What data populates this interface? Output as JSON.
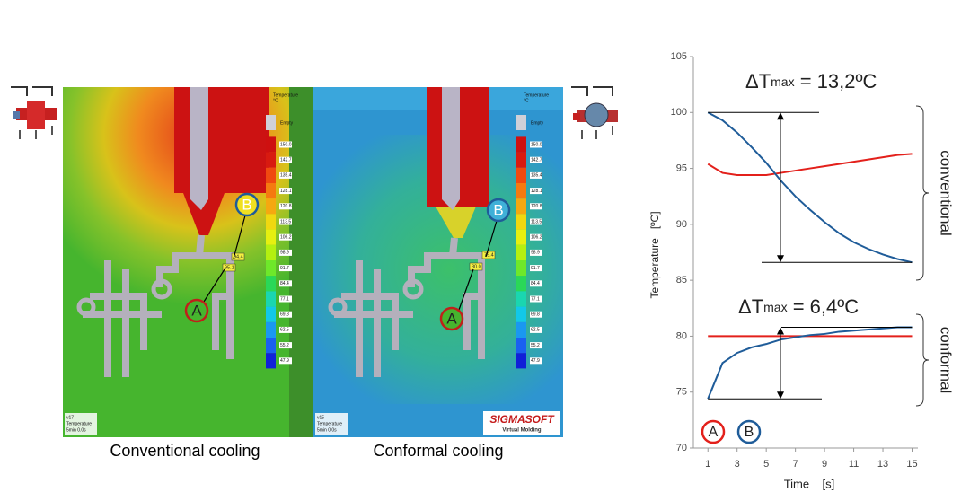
{
  "panels": [
    {
      "caption": "Conventional cooling",
      "version": "v17",
      "result": "Temperature",
      "time": "5min 0.0s",
      "probes": [
        "94.4",
        "95.1"
      ],
      "markers": [
        "A",
        "B"
      ]
    },
    {
      "caption": "Conformal cooling",
      "version": "v15",
      "result": "Temperature",
      "time": "5min 0.0s",
      "probes": [
        "79.4",
        "80.0"
      ],
      "markers": [
        "A",
        "B"
      ]
    }
  ],
  "colorbar": {
    "title": "Temperature",
    "unit": "°C",
    "empty": "Empty",
    "labels": [
      "150.0",
      "142.7",
      "135.4",
      "128.1",
      "120.8",
      "113.5",
      "106.2",
      "98.9",
      "91.7",
      "84.4",
      "77.1",
      "69.8",
      "62.5",
      "55.2",
      "47.9"
    ]
  },
  "logo": {
    "name": "SIGMASOFT",
    "tagline": "Virtual Molding"
  },
  "chart_data": {
    "type": "line",
    "x": [
      1,
      2,
      3,
      4,
      5,
      6,
      7,
      8,
      9,
      10,
      11,
      12,
      13,
      14,
      15
    ],
    "series": [
      {
        "name": "A",
        "color": "#e3201b",
        "values": [
          95.4,
          94.6,
          94.4,
          94.4,
          94.4,
          94.6,
          94.8,
          95.0,
          95.2,
          95.4,
          95.6,
          95.8,
          96.0,
          96.2,
          96.3
        ]
      },
      {
        "name": "B",
        "color": "#1f5c99",
        "values": [
          100,
          99.3,
          98.2,
          96.9,
          95.5,
          93.9,
          92.5,
          91.3,
          90.2,
          89.2,
          88.4,
          87.8,
          87.3,
          86.9,
          86.6
        ]
      },
      {
        "name": "A",
        "color": "#e3201b",
        "values": [
          80,
          80,
          80,
          80,
          80,
          80,
          80,
          80,
          80,
          80,
          80,
          80,
          80,
          80,
          80
        ]
      },
      {
        "name": "B",
        "color": "#1f5c99",
        "values": [
          74.4,
          77.6,
          78.5,
          79.0,
          79.3,
          79.7,
          79.9,
          80.1,
          80.2,
          80.4,
          80.5,
          80.6,
          80.7,
          80.8,
          80.8
        ]
      }
    ],
    "xlim": [
      0,
      15.4
    ],
    "xticks": [
      1,
      3,
      5,
      7,
      9,
      11,
      13,
      15
    ],
    "ylim": [
      70,
      105
    ],
    "yticks": [
      70,
      75,
      80,
      85,
      90,
      95,
      100,
      105
    ],
    "xlabel": "Time    [s]",
    "ylabel": "Temperature   [ºC]",
    "grid": false,
    "annotations": [
      {
        "text": "ΔT",
        "subscript": "max",
        "suffix": " = 13,2ºC"
      },
      {
        "text": "ΔT",
        "subscript": "max",
        "suffix": " = 6,4ºC"
      }
    ],
    "group_labels": [
      "conventional",
      "conformal"
    ]
  }
}
